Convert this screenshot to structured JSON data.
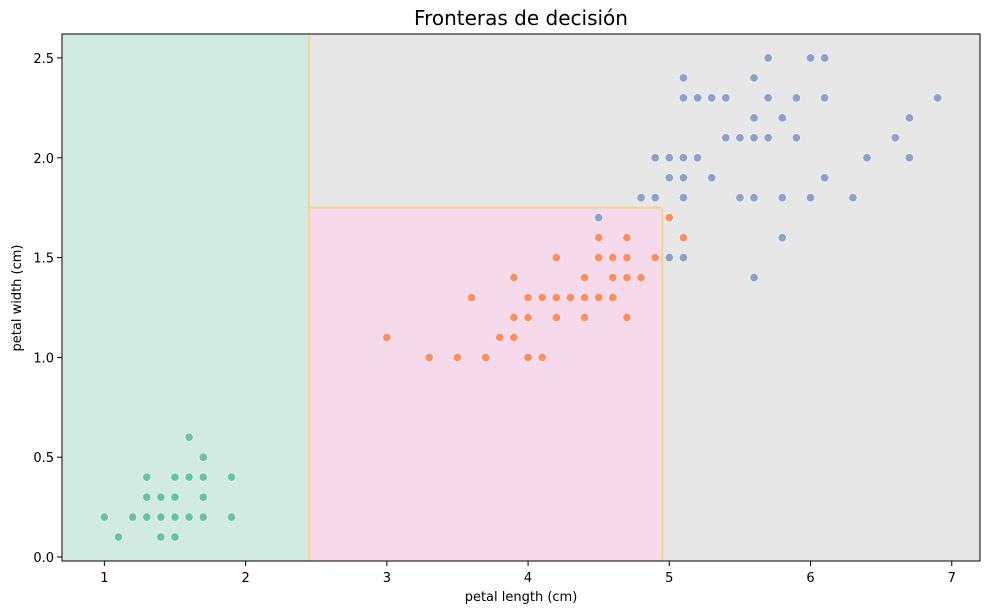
{
  "chart_data": {
    "type": "scatter",
    "title": "Fronteras de decisión",
    "xlabel": "petal length (cm)",
    "ylabel": "petal width (cm)",
    "xlim": [
      0.7,
      7.2
    ],
    "ylim": [
      -0.02,
      2.62
    ],
    "x_ticks": [
      1,
      2,
      3,
      4,
      5,
      6,
      7
    ],
    "x_tick_labels": [
      "1",
      "2",
      "3",
      "4",
      "5",
      "6",
      "7"
    ],
    "y_ticks": [
      0.0,
      0.5,
      1.0,
      1.5,
      2.0,
      2.5
    ],
    "y_tick_labels": [
      "0.0",
      "0.5",
      "1.0",
      "1.5",
      "2.0",
      "2.5"
    ],
    "grid": false,
    "decision_regions": [
      {
        "class": 0,
        "color": "#d1ebe3",
        "x_range": [
          0.7,
          2.45
        ],
        "y_range": [
          -0.02,
          2.62
        ]
      },
      {
        "class": 1,
        "color": "#f7d9ec",
        "x_range": [
          2.45,
          4.95
        ],
        "y_range": [
          -0.02,
          1.75
        ]
      },
      {
        "class": 2,
        "color": "#e7e7e7",
        "x_range": [
          4.95,
          7.2
        ],
        "y_range": [
          -0.02,
          2.62
        ]
      },
      {
        "class": 2,
        "color": "#e7e7e7",
        "x_range": [
          2.45,
          4.95
        ],
        "y_range": [
          1.75,
          2.62
        ]
      }
    ],
    "boundary_color": "#f3d48f",
    "series": [
      {
        "class": 0,
        "color": "#66c2a5",
        "points": [
          [
            1.0,
            0.2
          ],
          [
            1.1,
            0.1
          ],
          [
            1.2,
            0.2
          ],
          [
            1.3,
            0.2
          ],
          [
            1.3,
            0.3
          ],
          [
            1.3,
            0.4
          ],
          [
            1.4,
            0.1
          ],
          [
            1.4,
            0.2
          ],
          [
            1.4,
            0.3
          ],
          [
            1.5,
            0.1
          ],
          [
            1.5,
            0.2
          ],
          [
            1.5,
            0.3
          ],
          [
            1.5,
            0.4
          ],
          [
            1.6,
            0.2
          ],
          [
            1.6,
            0.4
          ],
          [
            1.6,
            0.6
          ],
          [
            1.7,
            0.2
          ],
          [
            1.7,
            0.3
          ],
          [
            1.7,
            0.4
          ],
          [
            1.7,
            0.5
          ],
          [
            1.9,
            0.2
          ],
          [
            1.9,
            0.4
          ]
        ]
      },
      {
        "class": 1,
        "color": "#fc8d62",
        "points": [
          [
            3.0,
            1.1
          ],
          [
            3.3,
            1.0
          ],
          [
            3.5,
            1.0
          ],
          [
            3.6,
            1.3
          ],
          [
            3.7,
            1.0
          ],
          [
            3.8,
            1.1
          ],
          [
            3.9,
            1.1
          ],
          [
            3.9,
            1.2
          ],
          [
            3.9,
            1.4
          ],
          [
            4.0,
            1.0
          ],
          [
            4.0,
            1.2
          ],
          [
            4.0,
            1.3
          ],
          [
            4.1,
            1.0
          ],
          [
            4.1,
            1.3
          ],
          [
            4.2,
            1.2
          ],
          [
            4.2,
            1.3
          ],
          [
            4.2,
            1.5
          ],
          [
            4.3,
            1.3
          ],
          [
            4.4,
            1.2
          ],
          [
            4.4,
            1.3
          ],
          [
            4.4,
            1.4
          ],
          [
            4.5,
            1.3
          ],
          [
            4.5,
            1.5
          ],
          [
            4.5,
            1.6
          ],
          [
            4.6,
            1.3
          ],
          [
            4.6,
            1.4
          ],
          [
            4.6,
            1.5
          ],
          [
            4.7,
            1.2
          ],
          [
            4.7,
            1.4
          ],
          [
            4.7,
            1.5
          ],
          [
            4.7,
            1.6
          ],
          [
            4.8,
            1.4
          ],
          [
            4.9,
            1.5
          ],
          [
            5.0,
            1.7
          ],
          [
            5.1,
            1.6
          ]
        ]
      },
      {
        "class": 2,
        "color": "#8da0cb",
        "points": [
          [
            4.5,
            1.7
          ],
          [
            4.8,
            1.8
          ],
          [
            4.9,
            1.8
          ],
          [
            4.9,
            2.0
          ],
          [
            5.0,
            1.5
          ],
          [
            5.0,
            1.9
          ],
          [
            5.0,
            2.0
          ],
          [
            5.1,
            1.5
          ],
          [
            5.1,
            1.8
          ],
          [
            5.1,
            1.9
          ],
          [
            5.1,
            2.0
          ],
          [
            5.1,
            2.3
          ],
          [
            5.1,
            2.4
          ],
          [
            5.2,
            2.0
          ],
          [
            5.2,
            2.3
          ],
          [
            5.3,
            1.9
          ],
          [
            5.3,
            2.3
          ],
          [
            5.4,
            2.1
          ],
          [
            5.4,
            2.3
          ],
          [
            5.5,
            1.8
          ],
          [
            5.5,
            2.1
          ],
          [
            5.6,
            1.4
          ],
          [
            5.6,
            1.8
          ],
          [
            5.6,
            2.1
          ],
          [
            5.6,
            2.2
          ],
          [
            5.6,
            2.4
          ],
          [
            5.7,
            2.1
          ],
          [
            5.7,
            2.3
          ],
          [
            5.7,
            2.5
          ],
          [
            5.8,
            1.6
          ],
          [
            5.8,
            1.8
          ],
          [
            5.8,
            2.2
          ],
          [
            5.9,
            2.1
          ],
          [
            5.9,
            2.3
          ],
          [
            6.0,
            1.8
          ],
          [
            6.0,
            2.5
          ],
          [
            6.1,
            1.9
          ],
          [
            6.1,
            2.3
          ],
          [
            6.1,
            2.5
          ],
          [
            6.3,
            1.8
          ],
          [
            6.4,
            2.0
          ],
          [
            6.6,
            2.1
          ],
          [
            6.7,
            2.0
          ],
          [
            6.7,
            2.2
          ],
          [
            6.9,
            2.3
          ]
        ]
      }
    ]
  }
}
